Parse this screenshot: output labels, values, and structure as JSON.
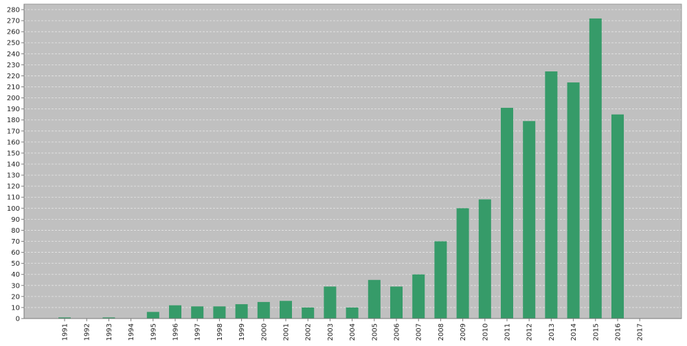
{
  "chart_data": {
    "type": "bar",
    "title": "",
    "xlabel": "",
    "ylabel": "",
    "categories": [
      "1991",
      "1992",
      "1993",
      "1994",
      "1995",
      "1996",
      "1997",
      "1998",
      "1999",
      "2000",
      "2001",
      "2002",
      "2003",
      "2004",
      "2005",
      "2006",
      "2007",
      "2008",
      "2009",
      "2010",
      "2011",
      "2012",
      "2013",
      "2014",
      "2015",
      "2016",
      "2017"
    ],
    "values": [
      1,
      0,
      1,
      0,
      6,
      12,
      11,
      11,
      13,
      15,
      16,
      10,
      29,
      10,
      35,
      29,
      40,
      70,
      100,
      108,
      191,
      179,
      224,
      214,
      272,
      185,
      0
    ],
    "ylim": [
      0,
      285
    ],
    "yticks": [
      0,
      10,
      20,
      30,
      40,
      50,
      60,
      70,
      80,
      90,
      100,
      110,
      120,
      130,
      140,
      150,
      160,
      170,
      180,
      190,
      200,
      210,
      220,
      230,
      240,
      250,
      260,
      270,
      280
    ],
    "grid": true,
    "colors": {
      "bar": "#369b69",
      "plot_background": "#c0c0c0",
      "gridline": "#e6e6e6",
      "axis": "#777777"
    }
  }
}
